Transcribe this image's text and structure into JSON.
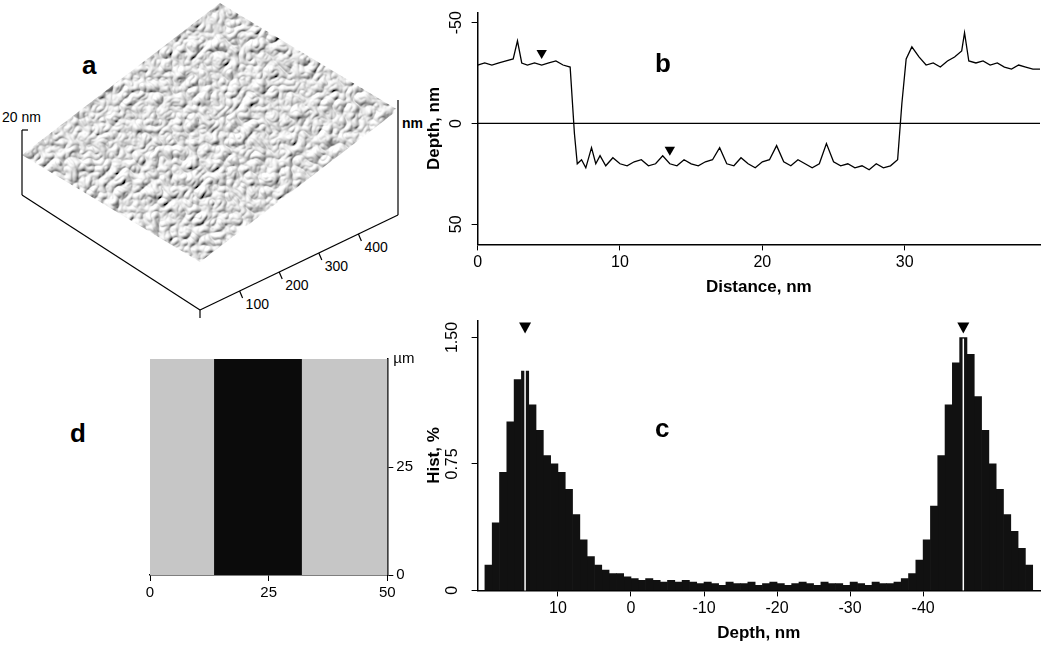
{
  "chart_data": [
    {
      "panel": "a",
      "type": "surface",
      "z_label": "20 nm",
      "axis_label": "nm",
      "xlim": [
        0,
        500
      ],
      "xticks": [
        100,
        200,
        300,
        400
      ]
    },
    {
      "panel": "b",
      "type": "line",
      "x_label": "Distance, nm",
      "y_label": "Depth, nm",
      "xlim": [
        0,
        39.5
      ],
      "xticks": [
        0,
        10,
        20,
        30
      ],
      "ylim": [
        60,
        -55
      ],
      "yticks": [
        -50,
        0,
        50
      ],
      "grid": false,
      "reference_line": 0,
      "series": [
        {
          "type": "line",
          "color": "#000000",
          "x": [
            0,
            0.5,
            1,
            1.5,
            2,
            2.5,
            2.8,
            3.1,
            3.5,
            4,
            4.5,
            5,
            5.5,
            6,
            6.5,
            6.8,
            7,
            7.3,
            7.6,
            8,
            8.3,
            8.6,
            9,
            9.5,
            10,
            10.5,
            11,
            11.5,
            12,
            12.5,
            13,
            13.5,
            14,
            14.5,
            15,
            15.5,
            16,
            16.5,
            17,
            17.5,
            18,
            18.5,
            19,
            19.5,
            20,
            20.5,
            21,
            21.5,
            22,
            22.5,
            23,
            23.5,
            24,
            24.5,
            25,
            25.5,
            26,
            26.5,
            27,
            27.5,
            28,
            28.5,
            29,
            29.5,
            29.8,
            30.1,
            30.5,
            31,
            31.5,
            32,
            32.5,
            33,
            33.5,
            34,
            34.2,
            34.5,
            35,
            35.5,
            36,
            36.5,
            37,
            37.5,
            38,
            38.5,
            39,
            39.5
          ],
          "values": [
            -29,
            -30,
            -29,
            -30,
            -31,
            -32,
            -41,
            -30,
            -29,
            -30,
            -29,
            -30,
            -31,
            -29,
            -28,
            5,
            20,
            18,
            22,
            12,
            20,
            16,
            21,
            17,
            20,
            21,
            19,
            18,
            21,
            20,
            16,
            20,
            21,
            18,
            20,
            21,
            19,
            18,
            12,
            20,
            21,
            17,
            20,
            22,
            19,
            18,
            11,
            19,
            21,
            18,
            20,
            22,
            20,
            10,
            19,
            21,
            20,
            22,
            21,
            23,
            20,
            22,
            21,
            18,
            -10,
            -32,
            -38,
            -33,
            -29,
            -30,
            -28,
            -31,
            -33,
            -36,
            -45,
            -31,
            -30,
            -31,
            -29,
            -30,
            -28,
            -27,
            -29,
            -28,
            -27,
            -27
          ]
        },
        {
          "type": "scatter",
          "marker": "triangle_down",
          "color": "#000000",
          "x": [
            4.5,
            13.5
          ],
          "values": [
            -35,
            13
          ]
        }
      ]
    },
    {
      "panel": "c",
      "type": "histogram",
      "x_label": "Depth, nm",
      "y_label": "Hist, %",
      "xlim": [
        21,
        -56
      ],
      "xticks": [
        10,
        0,
        -10,
        -20,
        -30,
        -40
      ],
      "ylim": [
        0,
        1.6
      ],
      "yticks": [
        0,
        0.75,
        {
          "value": 1.5,
          "label": "1.50"
        }
      ],
      "grid": false,
      "color": "#111111",
      "peaks": [
        14.5,
        -45.5
      ],
      "bins": [
        -55,
        -54,
        -53,
        -52,
        -51,
        -50,
        -49,
        -48,
        -47,
        -46,
        -45,
        -44,
        -43,
        -42,
        -41,
        -40,
        -39,
        -38,
        -37,
        -36,
        -35,
        -34,
        -33,
        -32,
        -31,
        -30,
        -29,
        -28,
        -27,
        -26,
        -25,
        -24,
        -23,
        -22,
        -21,
        -20,
        -19,
        -18,
        -17,
        -16,
        -15,
        -14,
        -13,
        -12,
        -11,
        -10,
        -9,
        -8,
        -7,
        -6,
        -5,
        -4,
        -3,
        -2,
        -1,
        0,
        1,
        2,
        3,
        4,
        5,
        6,
        7,
        8,
        9,
        10,
        11,
        12,
        13,
        14,
        15,
        16,
        17,
        18,
        19,
        20
      ],
      "counts": [
        0.15,
        0.25,
        0.35,
        0.45,
        0.6,
        0.75,
        0.95,
        1.15,
        1.4,
        1.5,
        1.35,
        1.1,
        0.8,
        0.5,
        0.3,
        0.18,
        0.1,
        0.07,
        0.05,
        0.04,
        0.04,
        0.05,
        0.03,
        0.04,
        0.05,
        0.03,
        0.04,
        0.04,
        0.05,
        0.03,
        0.04,
        0.05,
        0.04,
        0.03,
        0.04,
        0.05,
        0.04,
        0.03,
        0.05,
        0.04,
        0.04,
        0.05,
        0.03,
        0.04,
        0.05,
        0.04,
        0.05,
        0.06,
        0.05,
        0.06,
        0.05,
        0.06,
        0.07,
        0.06,
        0.07,
        0.08,
        0.1,
        0.1,
        0.12,
        0.15,
        0.2,
        0.3,
        0.45,
        0.6,
        0.7,
        0.75,
        0.8,
        0.95,
        1.1,
        1.3,
        1.25,
        1.0,
        0.7,
        0.4,
        0.15
      ]
    },
    {
      "panel": "d",
      "type": "image",
      "y_label": "µm",
      "xlim": [
        0,
        50
      ],
      "xticks": [
        0,
        25,
        50
      ],
      "ylim": [
        0,
        50
      ],
      "yticks": [
        0,
        25
      ],
      "band": [
        13.5,
        32
      ],
      "color": "#0b0b0b",
      "grid": false
    }
  ]
}
